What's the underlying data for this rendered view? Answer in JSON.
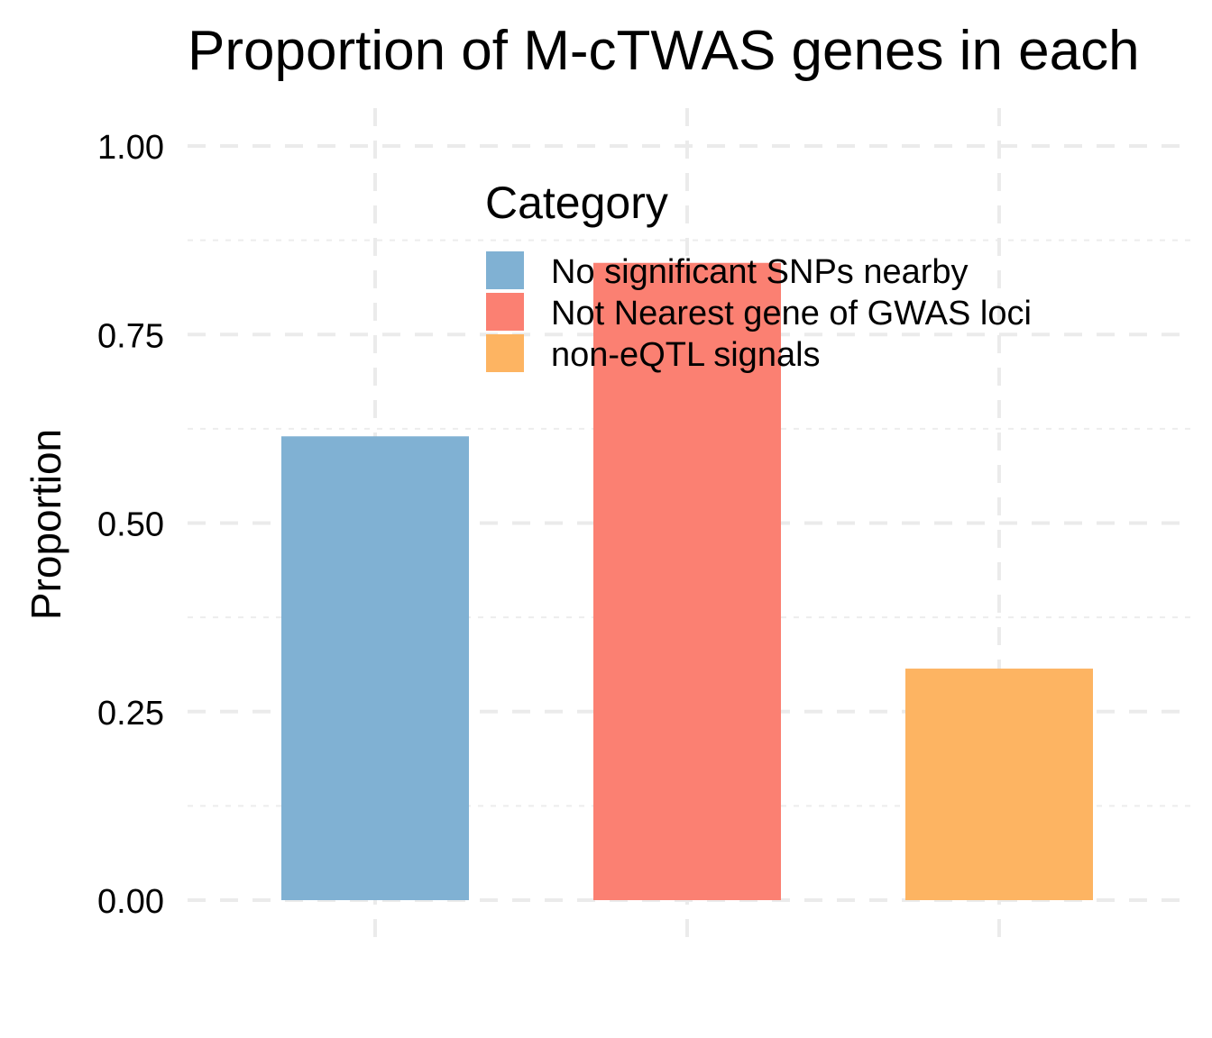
{
  "chart_data": {
    "type": "bar",
    "title": "Proportion of M-cTWAS genes in each",
    "xlabel": "",
    "ylabel": "Proportion",
    "ylim": [
      0,
      1
    ],
    "y_ticks": [
      "0.00",
      "0.25",
      "0.50",
      "0.75",
      "1.00"
    ],
    "y_tick_values": [
      0,
      0.25,
      0.5,
      0.75,
      1.0
    ],
    "categories": [
      "No significant SNPs nearby",
      "Not Nearest gene of GWAS loci",
      "non-eQTL signals"
    ],
    "values": [
      0.615,
      0.845,
      0.307
    ],
    "colors": [
      "#80B1D3",
      "#FB8072",
      "#FDB462"
    ],
    "grid": true,
    "legend": {
      "title": "Category",
      "placement": "top-center",
      "items": [
        "No significant SNPs nearby",
        "Not Nearest gene of GWAS loci",
        "non-eQTL signals"
      ]
    }
  }
}
